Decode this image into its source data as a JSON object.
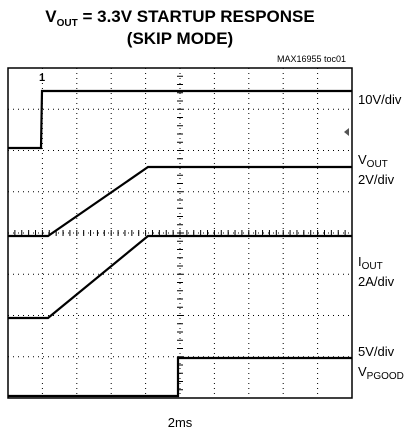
{
  "header": {
    "title": {
      "v": "V",
      "sub": "OUT",
      "rest": " = 3.3V STARTUP RESPONSE"
    },
    "subtitle": "(SKIP MODE)",
    "code": "MAX16955 toc01"
  },
  "channels": [
    {
      "scale": "10V/div"
    },
    {
      "name": {
        "v": "V",
        "sub": "OUT"
      },
      "scale": "2V/div"
    },
    {
      "name": {
        "v": "I",
        "sub": "OUT"
      },
      "scale": "2A/div"
    },
    {
      "scale": "5V/div",
      "name": {
        "v": "V",
        "sub": "PGOOD"
      }
    }
  ],
  "timebase": "2ms",
  "marker": "1"
}
